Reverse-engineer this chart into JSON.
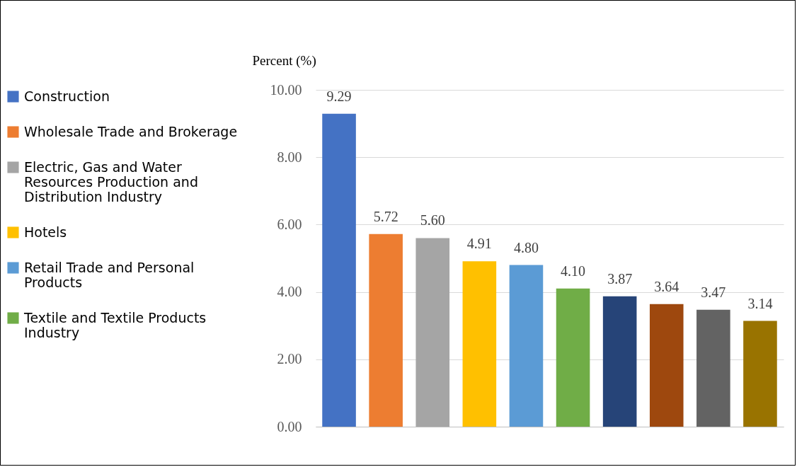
{
  "chart_data": {
    "type": "bar",
    "ylabel": "Percent (%)",
    "categories": [
      null,
      null,
      null,
      null,
      null,
      null,
      null,
      null,
      null,
      null
    ],
    "series": [
      {
        "name": "Construction",
        "color": "#4472c4",
        "values": [
          9.29,
          null,
          null,
          null,
          null,
          null,
          null,
          null,
          null,
          null
        ],
        "value_labels": [
          "9.29",
          null,
          null,
          null,
          null,
          null,
          null,
          null,
          null,
          null
        ]
      },
      {
        "name": "Wholesale Trade and Brokerage",
        "color": "#ed7d31",
        "values": [
          null,
          5.72,
          null,
          null,
          null,
          null,
          null,
          null,
          null,
          null
        ],
        "value_labels": [
          null,
          "5.72",
          null,
          null,
          null,
          null,
          null,
          null,
          null,
          null
        ]
      },
      {
        "name": "Electric, Gas and Water Resources Production and Distribution Industry",
        "color": "#a5a5a5",
        "values": [
          null,
          null,
          5.6,
          null,
          null,
          null,
          null,
          null,
          null,
          null
        ],
        "value_labels": [
          null,
          null,
          "5.60",
          null,
          null,
          null,
          null,
          null,
          null,
          null
        ]
      },
      {
        "name": "Hotels",
        "color": "#ffc000",
        "values": [
          null,
          null,
          null,
          4.91,
          null,
          null,
          null,
          null,
          null,
          null
        ],
        "value_labels": [
          null,
          null,
          null,
          "4.91",
          null,
          null,
          null,
          null,
          null,
          null
        ]
      },
      {
        "name": "Retail Trade and Personal Products",
        "color": "#5b9bd5",
        "values": [
          null,
          null,
          null,
          null,
          4.8,
          null,
          null,
          null,
          null,
          null
        ],
        "value_labels": [
          null,
          null,
          null,
          null,
          "4.80",
          null,
          null,
          null,
          null,
          null
        ]
      },
      {
        "name": "Textile and Textile Products Industry",
        "color": "#70ad47",
        "values": [
          null,
          null,
          null,
          null,
          null,
          4.1,
          null,
          null,
          null,
          null
        ],
        "value_labels": [
          null,
          null,
          null,
          null,
          null,
          "4.10",
          null,
          null,
          null,
          null
        ]
      },
      {
        "color": "#264478",
        "values": [
          null,
          null,
          null,
          null,
          null,
          null,
          3.87,
          null,
          null,
          null
        ],
        "value_labels": [
          null,
          null,
          null,
          null,
          null,
          null,
          "3.87",
          null,
          null,
          null
        ]
      },
      {
        "color": "#9e480e",
        "values": [
          null,
          null,
          null,
          null,
          null,
          null,
          null,
          3.64,
          null,
          null
        ],
        "value_labels": [
          null,
          null,
          null,
          null,
          null,
          null,
          null,
          "3.64",
          null,
          null
        ]
      },
      {
        "color": "#636363",
        "values": [
          null,
          null,
          null,
          null,
          null,
          null,
          null,
          null,
          3.47,
          null
        ],
        "value_labels": [
          null,
          null,
          null,
          null,
          null,
          null,
          null,
          null,
          "3.47",
          null
        ]
      },
      {
        "color": "#997300",
        "values": [
          null,
          null,
          null,
          null,
          null,
          null,
          null,
          null,
          null,
          3.14
        ],
        "value_labels": [
          null,
          null,
          null,
          null,
          null,
          null,
          null,
          null,
          null,
          "3.14"
        ]
      }
    ],
    "ylim": [
      0,
      10
    ],
    "yticks": [
      {
        "value": 0,
        "label": "0.00"
      },
      {
        "value": 2,
        "label": "2.00"
      },
      {
        "value": 4,
        "label": "4.00"
      },
      {
        "value": 6,
        "label": "6.00"
      },
      {
        "value": 8,
        "label": "8.00"
      },
      {
        "value": 10,
        "label": "10.00"
      }
    ],
    "grid": "y",
    "legend": "left"
  }
}
